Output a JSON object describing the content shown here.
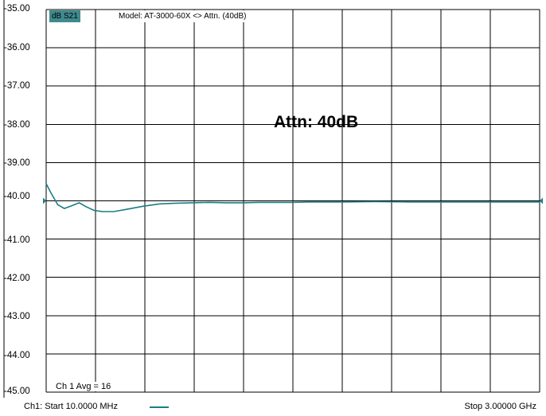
{
  "trace_label": "dB S21",
  "model_label": "Model: AT-3000-60X <> Attn. (40dB)",
  "annotation": "Attn: 40dB",
  "avg_label": "Ch 1 Avg =  16",
  "footer": {
    "start_label": "Ch1: Start  10.0000 MHz",
    "stop_label": "Stop  3.00000 GHz"
  },
  "colors": {
    "trace": "#1b7d84",
    "trace_label_bg": "#3f8a8e",
    "grid": "#000000"
  },
  "y_ticks": [
    "-35.00",
    "-36.00",
    "-37.00",
    "-38.00",
    "-39.00",
    "-40.00",
    "-41.00",
    "-42.00",
    "-43.00",
    "-44.00",
    "-45.00"
  ],
  "chart_data": {
    "type": "line",
    "title": "Model: AT-3000-60X <> Attn. (40dB)",
    "ylabel": "dB S21",
    "xlabel": "",
    "xlim": [
      0.01,
      3.0
    ],
    "ylim": [
      -45,
      -35
    ],
    "x_unit": "GHz",
    "grid": true,
    "x_divisions": 10,
    "y_divisions": 10,
    "series": [
      {
        "name": "dB S21",
        "x": [
          0.01,
          0.04,
          0.08,
          0.12,
          0.17,
          0.21,
          0.25,
          0.3,
          0.35,
          0.42,
          0.5,
          0.6,
          0.7,
          0.8,
          0.9,
          1.0,
          1.1,
          1.2,
          1.3,
          1.4,
          1.5,
          1.6,
          1.8,
          2.0,
          2.2,
          2.4,
          2.6,
          2.8,
          3.0
        ],
        "values": [
          -39.55,
          -39.8,
          -40.1,
          -40.2,
          -40.12,
          -40.05,
          -40.15,
          -40.25,
          -40.28,
          -40.28,
          -40.22,
          -40.14,
          -40.08,
          -40.06,
          -40.05,
          -40.04,
          -40.05,
          -40.05,
          -40.04,
          -40.04,
          -40.04,
          -40.03,
          -40.03,
          -40.02,
          -40.03,
          -40.03,
          -40.03,
          -40.03,
          -40.03
        ]
      }
    ]
  }
}
